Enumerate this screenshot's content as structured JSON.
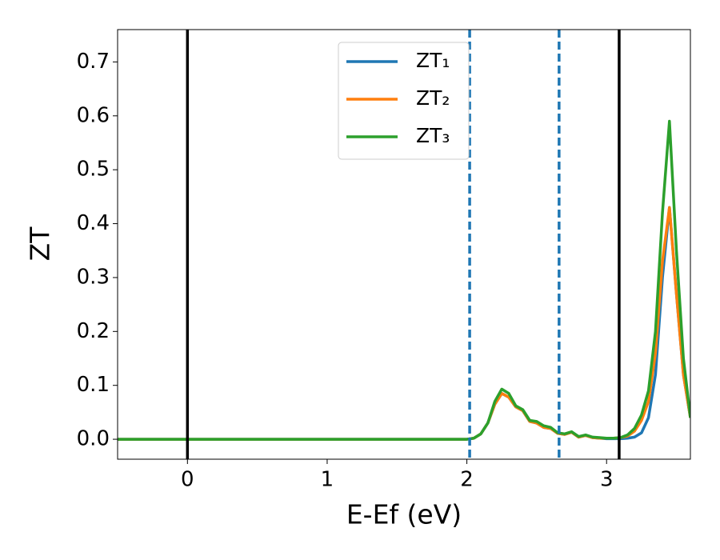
{
  "chart_data": {
    "type": "line",
    "xlabel": "E-Ef (eV)",
    "ylabel": "ZT",
    "x": [
      -0.5,
      2.0,
      2.05,
      2.1,
      2.15,
      2.2,
      2.25,
      2.3,
      2.35,
      2.4,
      2.45,
      2.5,
      2.55,
      2.6,
      2.65,
      2.7,
      2.75,
      2.8,
      2.85,
      2.9,
      2.95,
      3.0,
      3.05,
      3.1,
      3.15,
      3.2,
      3.25,
      3.3,
      3.35,
      3.4,
      3.45,
      3.5,
      3.55,
      3.6
    ],
    "series": [
      {
        "name": "ZT₁",
        "color": "#1f77b4",
        "values": [
          0,
          0,
          0.002,
          0.01,
          0.03,
          0.065,
          0.085,
          0.078,
          0.06,
          0.053,
          0.033,
          0.03,
          0.022,
          0.02,
          0.011,
          0.009,
          0.013,
          0.004,
          0.007,
          0.003,
          0.002,
          0.001,
          0.001,
          0.001,
          0.002,
          0.004,
          0.012,
          0.04,
          0.12,
          0.3,
          0.43,
          0.27,
          0.12,
          0.04
        ]
      },
      {
        "name": "ZT₂",
        "color": "#ff7f0e",
        "values": [
          0,
          0,
          0.002,
          0.01,
          0.03,
          0.065,
          0.085,
          0.078,
          0.06,
          0.053,
          0.033,
          0.03,
          0.022,
          0.02,
          0.011,
          0.009,
          0.013,
          0.004,
          0.007,
          0.003,
          0.002,
          0.002,
          0.002,
          0.003,
          0.006,
          0.015,
          0.035,
          0.07,
          0.16,
          0.33,
          0.43,
          0.27,
          0.12,
          0.04
        ]
      },
      {
        "name": "ZT₃",
        "color": "#2ca02c",
        "values": [
          0,
          0,
          0.002,
          0.01,
          0.03,
          0.07,
          0.093,
          0.085,
          0.062,
          0.055,
          0.035,
          0.033,
          0.025,
          0.022,
          0.012,
          0.01,
          0.014,
          0.005,
          0.008,
          0.004,
          0.003,
          0.002,
          0.002,
          0.003,
          0.008,
          0.02,
          0.045,
          0.09,
          0.2,
          0.42,
          0.59,
          0.35,
          0.15,
          0.04
        ]
      }
    ],
    "vlines": [
      {
        "x": 0,
        "color": "#000000",
        "style": "solid"
      },
      {
        "x": 2.02,
        "color": "#1f77b4",
        "style": "dashed"
      },
      {
        "x": 2.66,
        "color": "#1f77b4",
        "style": "dashed"
      },
      {
        "x": 3.09,
        "color": "#000000",
        "style": "solid"
      }
    ],
    "xlim": [
      -0.5,
      3.6
    ],
    "ylim": [
      -0.037,
      0.76
    ],
    "xticks": [
      0,
      1,
      2,
      3
    ],
    "yticks": [
      {
        "value": 0,
        "label": "0.0"
      },
      0.1,
      0.2,
      0.3,
      0.4,
      0.5,
      0.6,
      0.7
    ],
    "legend": "upper center"
  }
}
